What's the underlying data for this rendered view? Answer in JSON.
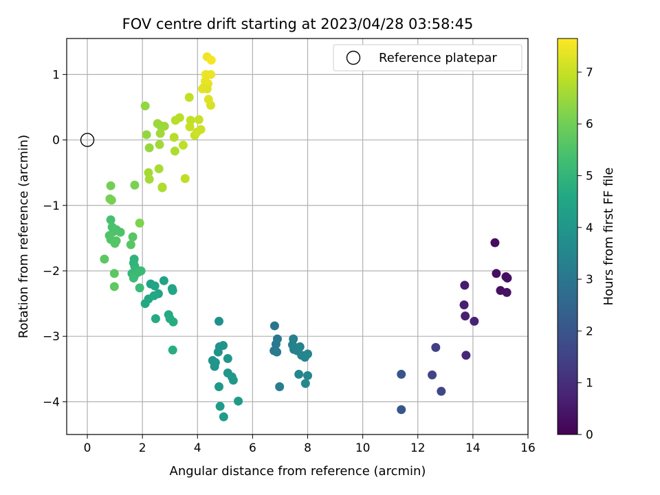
{
  "chart_data": {
    "type": "scatter",
    "title": "FOV centre drift starting at 2023/04/28 03:58:45",
    "xlabel": "Angular distance from reference (arcmin)",
    "ylabel": "Rotation from reference (arcmin)",
    "xlim": [
      -0.75,
      16
    ],
    "ylim": [
      -4.5,
      1.55
    ],
    "xticks": [
      0,
      2,
      4,
      6,
      8,
      10,
      12,
      14,
      16
    ],
    "yticks": [
      1,
      0,
      -1,
      -2,
      -3,
      -4
    ],
    "grid": true,
    "legend": {
      "position": "top-right",
      "entries": [
        "Reference platepar"
      ]
    },
    "colorbar": {
      "label": "Hours from first FF file",
      "colormap": "viridis",
      "range": [
        0,
        7.65
      ],
      "ticks": [
        0,
        1,
        2,
        3,
        4,
        5,
        6,
        7
      ]
    },
    "reference_point": {
      "x": 0,
      "y": 0,
      "label": "Reference platepar"
    },
    "series": [
      {
        "x": [
          14.8,
          14.85,
          15.2,
          15.25,
          15.0,
          15.23,
          13.7,
          13.68,
          13.72,
          14.05,
          13.75
        ],
        "y": [
          -1.57,
          -2.04,
          -2.09,
          -2.11,
          -2.3,
          -2.33,
          -2.22,
          -2.52,
          -2.69,
          -2.77,
          -3.29
        ],
        "hours": [
          0.25,
          0.28,
          0.3,
          0.32,
          0.35,
          0.38,
          0.6,
          0.65,
          0.7,
          0.75,
          0.85
        ]
      },
      {
        "x": [
          12.65,
          12.52,
          12.85,
          11.4,
          11.4
        ],
        "y": [
          -3.17,
          -3.59,
          -3.84,
          -3.58,
          -4.12
        ],
        "hours": [
          1.4,
          1.55,
          1.6,
          2.0,
          2.05
        ]
      },
      {
        "x": [
          6.8,
          6.9,
          6.85,
          6.78,
          6.88,
          6.98,
          7.48,
          7.45,
          7.5,
          7.62,
          7.72,
          7.78,
          7.9,
          8.0,
          7.68,
          8.0,
          7.92
        ],
        "y": [
          -2.84,
          -3.04,
          -3.12,
          -3.22,
          -3.24,
          -3.77,
          -3.04,
          -3.13,
          -3.2,
          -3.22,
          -3.16,
          -3.29,
          -3.32,
          -3.27,
          -3.58,
          -3.6,
          -3.72
        ],
        "hours": [
          3.0,
          3.05,
          3.1,
          3.12,
          3.15,
          3.2,
          3.3,
          3.32,
          3.35,
          3.38,
          3.4,
          3.42,
          3.45,
          3.48,
          3.5,
          3.52,
          3.55
        ]
      },
      {
        "x": [
          4.78,
          4.8,
          4.93,
          4.75,
          4.55,
          4.62,
          5.1,
          4.65,
          5.1,
          5.25,
          5.3,
          4.78,
          5.48,
          4.82,
          4.95
        ],
        "y": [
          -2.77,
          -3.16,
          -3.14,
          -3.24,
          -3.37,
          -3.46,
          -3.34,
          -3.4,
          -3.56,
          -3.62,
          -3.67,
          -3.77,
          -3.99,
          -4.07,
          -4.23
        ],
        "hours": [
          3.8,
          3.85,
          3.88,
          3.9,
          3.92,
          3.95,
          3.98,
          4.0,
          4.02,
          4.05,
          4.08,
          4.1,
          4.12,
          4.15,
          4.2
        ]
      },
      {
        "x": [
          2.3,
          2.78,
          2.45,
          2.58,
          3.08,
          3.1,
          2.22,
          2.42,
          2.1,
          2.95,
          2.48,
          3.0,
          3.12,
          3.1
        ],
        "y": [
          -2.2,
          -2.15,
          -2.23,
          -2.35,
          -2.27,
          -2.3,
          -2.43,
          -2.38,
          -2.5,
          -2.67,
          -2.73,
          -2.73,
          -2.78,
          -3.21
        ],
        "hours": [
          4.4,
          4.42,
          4.45,
          4.48,
          4.5,
          4.52,
          4.55,
          4.58,
          4.6,
          4.62,
          4.65,
          4.68,
          4.7,
          4.75
        ]
      },
      {
        "x": [
          1.7,
          1.68,
          1.72,
          1.78,
          1.62,
          1.85,
          1.72,
          1.95,
          1.9,
          1.68
        ],
        "y": [
          -1.82,
          -1.88,
          -1.93,
          -1.98,
          -2.04,
          -2.02,
          -2.07,
          -2.0,
          -2.26,
          -2.11
        ],
        "hours": [
          4.9,
          4.95,
          5.0,
          5.05,
          5.1,
          5.12,
          5.15,
          5.18,
          5.2,
          5.22
        ]
      },
      {
        "x": [
          0.85,
          0.9,
          0.95,
          1.05,
          1.2,
          0.8,
          0.85,
          1.05,
          1.0,
          1.65,
          1.58,
          0.62,
          0.98,
          0.98
        ],
        "y": [
          -1.22,
          -1.33,
          -1.4,
          -1.37,
          -1.41,
          -1.46,
          -1.52,
          -1.54,
          -1.58,
          -1.48,
          -1.6,
          -1.82,
          -2.04,
          -2.24
        ],
        "hours": [
          5.4,
          5.42,
          5.45,
          5.48,
          5.5,
          5.52,
          5.55,
          5.58,
          5.6,
          5.62,
          5.65,
          5.68,
          5.7,
          5.72
        ]
      },
      {
        "x": [
          0.85,
          0.82,
          0.88,
          1.72,
          1.9
        ],
        "y": [
          -0.7,
          -0.9,
          -0.92,
          -0.69,
          -1.27
        ],
        "hours": [
          6.0,
          6.05,
          6.08,
          6.1,
          6.15
        ]
      },
      {
        "x": [
          2.1,
          2.15,
          2.25,
          2.55,
          2.65,
          2.8,
          2.65,
          2.62,
          2.22,
          2.25,
          2.6,
          2.72,
          3.15,
          3.2,
          3.35,
          3.48,
          3.55,
          3.7,
          3.75,
          3.72,
          3.9,
          4.05,
          4.12,
          3.98,
          3.18,
          2.72
        ],
        "y": [
          0.52,
          0.08,
          -0.12,
          0.25,
          0.22,
          0.21,
          0.1,
          -0.07,
          -0.5,
          -0.6,
          -0.44,
          -0.73,
          0.04,
          0.3,
          0.34,
          -0.08,
          -0.59,
          0.65,
          0.3,
          0.2,
          0.07,
          0.31,
          0.16,
          0.12,
          -0.17,
          -0.72
        ],
        "hours": [
          6.4,
          6.42,
          6.45,
          6.48,
          6.5,
          6.52,
          6.55,
          6.58,
          6.6,
          6.62,
          6.65,
          6.68,
          6.8,
          6.82,
          6.85,
          6.88,
          6.9,
          6.92,
          6.95,
          6.98,
          7.0,
          7.02,
          7.05,
          7.08,
          6.7,
          6.72
        ]
      },
      {
        "x": [
          4.35,
          4.5,
          4.3,
          4.28,
          4.38,
          4.22,
          4.18,
          4.35,
          4.48,
          4.48,
          4.4
        ],
        "y": [
          1.27,
          1.22,
          1.0,
          0.9,
          0.86,
          0.8,
          0.78,
          0.78,
          1.0,
          0.53,
          0.62
        ],
        "hours": [
          7.5,
          7.55,
          7.45,
          7.4,
          7.38,
          7.35,
          7.32,
          7.3,
          7.42,
          7.2,
          7.25
        ]
      }
    ]
  }
}
